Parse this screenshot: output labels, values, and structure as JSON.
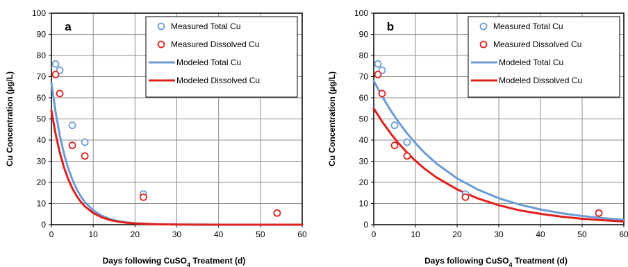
{
  "chart_data": [
    {
      "type": "scatter",
      "panel_label": "a",
      "xlabel": "Days following CuSO4 Treatment (d)",
      "xlabel_parts": [
        "Days following CuSO",
        "4",
        " Treatment (d)"
      ],
      "ylabel": "Cu Concentration (µg/L)",
      "xlim": [
        0,
        60
      ],
      "ylim": [
        0,
        100
      ],
      "x_ticks": [
        "0",
        "10",
        "20",
        "30",
        "40",
        "50",
        "60"
      ],
      "y_ticks": [
        "0",
        "10",
        "20",
        "30",
        "40",
        "50",
        "60",
        "70",
        "80",
        "90",
        "100"
      ],
      "grid": true,
      "legend_position": "top-right",
      "series": [
        {
          "name": "Measured Total Cu",
          "kind": "marker",
          "color": "#6b9bd6",
          "x": [
            1,
            2,
            5,
            8,
            22,
            54
          ],
          "y": [
            76,
            73,
            47,
            39,
            14.5,
            5.5
          ]
        },
        {
          "name": "Measured Dissolved Cu",
          "kind": "marker",
          "color": "#e0201b",
          "x": [
            1,
            2,
            5,
            8,
            22,
            54
          ],
          "y": [
            71,
            62,
            37.5,
            32.5,
            13,
            5.5
          ]
        },
        {
          "name": "Modeled Total Cu",
          "kind": "line",
          "color": "#6b9bd6",
          "x": [
            0,
            1,
            2,
            3,
            4,
            5,
            6,
            7,
            8,
            10,
            12,
            14,
            16,
            18,
            20,
            25,
            30,
            40,
            50,
            60
          ],
          "y": [
            67,
            53.3,
            42.4,
            33.7,
            26.8,
            21.3,
            17,
            13.5,
            10.7,
            6.8,
            4.3,
            2.7,
            1.7,
            1.1,
            0.7,
            0.3,
            0.1,
            0,
            0,
            0
          ]
        },
        {
          "name": "Modeled Dissolved Cu",
          "kind": "line",
          "color": "#e0201b",
          "x": [
            0,
            1,
            2,
            3,
            4,
            5,
            6,
            7,
            8,
            10,
            12,
            14,
            16,
            18,
            20,
            25,
            30,
            40,
            50,
            60
          ],
          "y": [
            54,
            43,
            34.2,
            27.2,
            21.6,
            17.2,
            13.7,
            10.9,
            8.7,
            5.5,
            3.5,
            2.2,
            1.4,
            0.9,
            0.6,
            0.2,
            0.1,
            0,
            0,
            0
          ]
        }
      ]
    },
    {
      "type": "scatter",
      "panel_label": "b",
      "xlabel": "Days following CuSO4 Treatment (d)",
      "xlabel_parts": [
        "Days following CuSO",
        "4",
        " Treatment (d)"
      ],
      "ylabel": "Cu Concentration (µg/L)",
      "xlim": [
        0,
        60
      ],
      "ylim": [
        0,
        100
      ],
      "x_ticks": [
        "0",
        "10",
        "20",
        "30",
        "40",
        "50",
        "60"
      ],
      "y_ticks": [
        "0",
        "10",
        "20",
        "30",
        "40",
        "50",
        "60",
        "70",
        "80",
        "90",
        "100"
      ],
      "grid": true,
      "legend_position": "top-right",
      "series": [
        {
          "name": "Measured Total Cu",
          "kind": "marker",
          "color": "#6b9bd6",
          "x": [
            1,
            2,
            5,
            8,
            22,
            54
          ],
          "y": [
            76,
            73,
            47,
            39,
            14.5,
            5.5
          ]
        },
        {
          "name": "Measured Dissolved Cu",
          "kind": "marker",
          "color": "#e0201b",
          "x": [
            1,
            2,
            5,
            8,
            22,
            54
          ],
          "y": [
            71,
            62,
            37.5,
            32.5,
            13,
            5.5
          ]
        },
        {
          "name": "Modeled Total Cu",
          "kind": "line",
          "color": "#6b9bd6",
          "x": [
            0,
            2,
            4,
            6,
            8,
            10,
            12,
            15,
            20,
            25,
            30,
            35,
            40,
            45,
            50,
            55,
            60
          ],
          "y": [
            68,
            60.7,
            54.2,
            48.4,
            43.2,
            38.6,
            34.4,
            29,
            21.9,
            16.6,
            12.5,
            9.5,
            7.2,
            5.4,
            4.1,
            3.1,
            2.3
          ]
        },
        {
          "name": "Modeled Dissolved Cu",
          "kind": "line",
          "color": "#e0201b",
          "x": [
            0,
            2,
            4,
            6,
            8,
            10,
            12,
            15,
            20,
            25,
            30,
            35,
            40,
            45,
            50,
            55,
            60
          ],
          "y": [
            55,
            48.8,
            43.3,
            38.4,
            34.1,
            30.2,
            26.8,
            22.4,
            16.7,
            12.4,
            9.2,
            6.8,
            5.1,
            3.8,
            2.8,
            2.1,
            1.5
          ]
        }
      ]
    }
  ]
}
